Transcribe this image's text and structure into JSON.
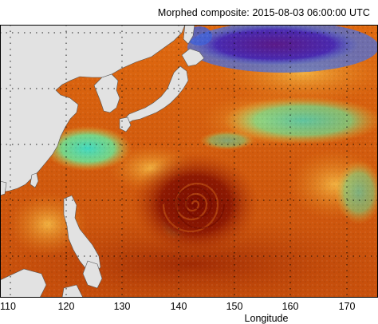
{
  "title": "Morphed composite: 2015-08-03 06:00:00 UTC",
  "map": {
    "projection": "lat-lon",
    "lon_range": [
      108,
      175
    ],
    "lat_range": [
      0,
      50
    ],
    "gridlines": "dotted every 10 degrees",
    "features": [
      "typhoon spiral near 143E 19N",
      "dry air band north of 40N near 150E-165E"
    ]
  },
  "xaxis": {
    "label": "Longitude",
    "ticks": [
      "110",
      "120",
      "130",
      "140",
      "150",
      "160",
      "170"
    ]
  },
  "colors": {
    "land": "#e2e2e2",
    "very_moist": "#8a1000",
    "moist": "#d9600f",
    "moderate": "#f0a030",
    "dry": "#50e0b0",
    "very_dry": "#3a2aa0"
  }
}
